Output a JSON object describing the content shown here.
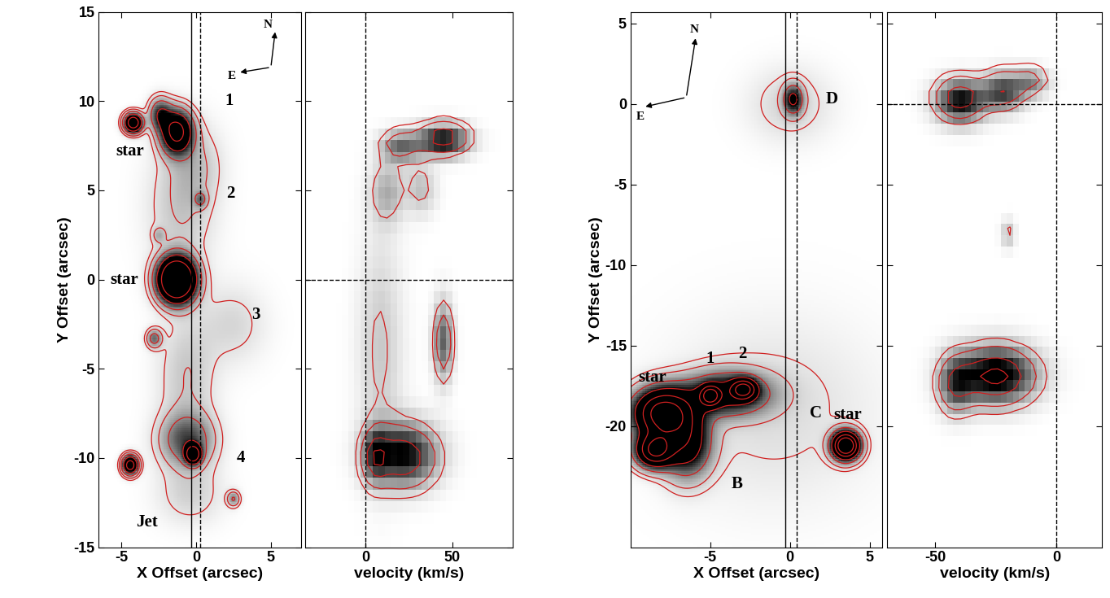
{
  "chart_data": [
    {
      "type": "image",
      "xlabel": "X Offset (arcsec)",
      "ylabel": "Y Offset (arcsec)",
      "xlim": [
        -6.5,
        7
      ],
      "ylim": [
        -15,
        15
      ],
      "xticks": [
        -5,
        0,
        5
      ],
      "yticks": [
        -15,
        -10,
        -5,
        0,
        5,
        10,
        15
      ],
      "color": "#d02020",
      "contour_levels": [
        0.05,
        0.1,
        0.2,
        0.4,
        0.7
      ],
      "color_range": [
        0,
        0.45
      ],
      "sources": [
        {
          "x": -4.2,
          "y": 8.8,
          "peak": 1.0,
          "sx": 0.4,
          "sy": 0.35
        },
        {
          "x": -1.3,
          "y": 8.3,
          "peak": 0.8,
          "sx": 0.7,
          "sy": 0.8
        },
        {
          "x": -2.4,
          "y": 9.3,
          "peak": 0.35,
          "sx": 0.5,
          "sy": 0.6
        },
        {
          "x": -1.3,
          "y": 0.0,
          "peak": 1.5,
          "sx": 0.8,
          "sy": 0.8
        },
        {
          "x": 0.3,
          "y": 4.5,
          "peak": 0.18,
          "sx": 0.3,
          "sy": 0.3
        },
        {
          "x": -2.5,
          "y": 2.5,
          "peak": 0.1,
          "sx": 0.3,
          "sy": 0.3
        },
        {
          "x": 2.5,
          "y": -2.5,
          "peak": 0.07,
          "sx": 1.5,
          "sy": 1.5
        },
        {
          "x": -2.8,
          "y": -3.3,
          "peak": 0.25,
          "sx": 0.35,
          "sy": 0.35
        },
        {
          "x": -0.2,
          "y": -9.8,
          "peak": 0.9,
          "sx": 0.35,
          "sy": 0.35
        },
        {
          "x": -0.6,
          "y": -9.0,
          "peak": 0.3,
          "sx": 1.2,
          "sy": 1.0
        },
        {
          "x": -4.4,
          "y": -10.4,
          "peak": 0.9,
          "sx": 0.35,
          "sy": 0.35
        },
        {
          "x": 2.5,
          "y": -12.3,
          "peak": 0.2,
          "sx": 0.3,
          "sy": 0.3
        },
        {
          "x": -0.6,
          "y": -5.5,
          "peak": 0.1,
          "sx": 1.3,
          "sy": 2.5
        },
        {
          "x": -1.0,
          "y": 4.0,
          "peak": 0.1,
          "sx": 1.5,
          "sy": 2.5
        },
        {
          "x": 0.0,
          "y": 6.5,
          "peak": 0.08,
          "sx": 1.2,
          "sy": 1.5
        },
        {
          "x": -0.4,
          "y": -12.0,
          "peak": 0.08,
          "sx": 1.5,
          "sy": 1.2
        }
      ],
      "lines": [
        {
          "direction": "vertical",
          "at": -0.3,
          "line_style": "solid"
        },
        {
          "direction": "vertical",
          "at": 0.3,
          "line_style": "dashed"
        }
      ],
      "annotations": [
        {
          "text": "1",
          "x": 2.2,
          "y": 10.0
        },
        {
          "text": "2",
          "x": 2.3,
          "y": 4.8
        },
        {
          "text": "3",
          "x": 4.0,
          "y": -2.0
        },
        {
          "text": "4",
          "x": 3.0,
          "y": -10.0
        },
        {
          "text": "star",
          "x": -4.4,
          "y": 7.2
        },
        {
          "text": "star",
          "x": -4.8,
          "y": 0.0
        },
        {
          "text": "Jet",
          "x": -3.3,
          "y": -13.6
        },
        {
          "text": "N",
          "x": 4.8,
          "y": 14.3
        },
        {
          "text": "E",
          "x": 2.4,
          "y": 11.4
        }
      ],
      "compass": {
        "origin": [
          5.0,
          11.9
        ],
        "tips": [
          [
            5.3,
            14.0
          ],
          [
            2.8,
            11.6
          ]
        ]
      }
    },
    {
      "type": "image",
      "xlabel": "velocity (km/s)",
      "xlim": [
        -35,
        85
      ],
      "ylim": [
        -15,
        15
      ],
      "xticks": [
        0,
        50
      ],
      "yticks": [
        -15,
        -10,
        -5,
        0,
        5,
        10,
        15
      ],
      "tick_labels": "x",
      "color": "#d02020",
      "contour_levels": [
        0.15,
        0.3,
        0.6,
        0.85
      ],
      "color_range": [
        0,
        0.8
      ],
      "sources": [
        {
          "x": 45,
          "y": 8.0,
          "peak": 0.8,
          "sx": 10,
          "sy": 0.6
        },
        {
          "x": 20,
          "y": 7.6,
          "peak": 0.45,
          "sx": 8,
          "sy": 0.6
        },
        {
          "x": 12,
          "y": 5.0,
          "peak": 0.25,
          "sx": 7,
          "sy": 1.2
        },
        {
          "x": 32,
          "y": 5.2,
          "peak": 0.2,
          "sx": 6,
          "sy": 1.0
        },
        {
          "x": 45,
          "y": -3.5,
          "peak": 0.5,
          "sx": 4,
          "sy": 1.5
        },
        {
          "x": 22,
          "y": -10.0,
          "peak": 0.8,
          "sx": 13,
          "sy": 1.2
        },
        {
          "x": 5,
          "y": -10.0,
          "peak": 0.5,
          "sx": 5,
          "sy": 1.0
        },
        {
          "x": 8,
          "y": -4.0,
          "peak": 0.17,
          "sx": 9,
          "sy": 4.5
        }
      ],
      "lines": [
        {
          "direction": "vertical",
          "at": 0,
          "line_style": "dashed"
        },
        {
          "direction": "horizontal",
          "at": 0,
          "line_style": "dashed"
        }
      ]
    },
    {
      "type": "image",
      "xlabel": "X Offset (arcsec)",
      "ylabel": "Y Offset (arcsec)",
      "xlim": [
        -10,
        5.8
      ],
      "ylim": [
        -27.5,
        5.7
      ],
      "xticks": [
        -5,
        0,
        5
      ],
      "yticks": [
        -20,
        -15,
        -10,
        -5,
        0,
        5
      ],
      "color": "#d02020",
      "contour_levels": [
        0.03,
        0.06,
        0.15,
        0.3,
        0.5,
        0.7
      ],
      "color_range": [
        0,
        0.3
      ],
      "sources": [
        {
          "x": 0.2,
          "y": 0.3,
          "peak": 0.3,
          "sx": 0.4,
          "sy": 0.6
        },
        {
          "x": 0.0,
          "y": 0.0,
          "peak": 0.05,
          "sx": 1.8,
          "sy": 1.6
        },
        {
          "x": -5.0,
          "y": -18.1,
          "peak": 0.6,
          "sx": 0.4,
          "sy": 0.4
        },
        {
          "x": -2.9,
          "y": -17.7,
          "peak": 0.6,
          "sx": 0.5,
          "sy": 0.4
        },
        {
          "x": -4.0,
          "y": -18.0,
          "peak": 0.35,
          "sx": 1.8,
          "sy": 0.9
        },
        {
          "x": -8.0,
          "y": -19.2,
          "peak": 0.8,
          "sx": 1.2,
          "sy": 1.0
        },
        {
          "x": -8.5,
          "y": -21.5,
          "peak": 0.7,
          "sx": 0.8,
          "sy": 0.7
        },
        {
          "x": -6.5,
          "y": -21.0,
          "peak": 0.4,
          "sx": 1.0,
          "sy": 1.4
        },
        {
          "x": 3.5,
          "y": -21.2,
          "peak": 1.0,
          "sx": 0.55,
          "sy": 0.55
        },
        {
          "x": -1.0,
          "y": -19.0,
          "peak": 0.04,
          "sx": 4.5,
          "sy": 4.0
        }
      ],
      "lines": [
        {
          "direction": "vertical",
          "at": -0.3,
          "line_style": "solid"
        },
        {
          "direction": "vertical",
          "at": 0.4,
          "line_style": "dashed"
        }
      ],
      "annotations": [
        {
          "text": "D",
          "x": 2.6,
          "y": 0.3
        },
        {
          "text": "1",
          "x": -5.0,
          "y": -15.8
        },
        {
          "text": "2",
          "x": -3.0,
          "y": -15.5
        },
        {
          "text": "star",
          "x": -8.6,
          "y": -17.0
        },
        {
          "text": "B",
          "x": -3.3,
          "y": -23.6
        },
        {
          "text": "C",
          "x": 1.6,
          "y": -19.2
        },
        {
          "text": "star",
          "x": 3.6,
          "y": -19.3
        },
        {
          "text": "N",
          "x": -6.0,
          "y": 4.6
        },
        {
          "text": "E",
          "x": -9.4,
          "y": -0.8
        }
      ],
      "compass": {
        "origin": [
          -6.5,
          0.4
        ],
        "tips": [
          [
            -5.9,
            4.2
          ],
          [
            -9.2,
            -0.2
          ]
        ]
      }
    },
    {
      "type": "image",
      "xlabel": "velocity (km/s)",
      "xlim": [
        -70,
        19
      ],
      "ylim": [
        -27.5,
        5.7
      ],
      "xticks": [
        -50,
        0
      ],
      "yticks": [
        -20,
        -15,
        -10,
        -5,
        0,
        5
      ],
      "tick_labels": "x",
      "color": "#d02020",
      "contour_levels": [
        0.15,
        0.3,
        0.6,
        0.85
      ],
      "color_range": [
        0,
        0.8
      ],
      "sources": [
        {
          "x": -40,
          "y": 0.4,
          "peak": 0.8,
          "sx": 7,
          "sy": 0.9
        },
        {
          "x": -22,
          "y": 1.0,
          "peak": 0.6,
          "sx": 6,
          "sy": 0.8
        },
        {
          "x": -10,
          "y": 1.6,
          "peak": 0.35,
          "sx": 5,
          "sy": 0.6
        },
        {
          "x": -25,
          "y": -16.9,
          "peak": 0.95,
          "sx": 11,
          "sy": 1.2
        },
        {
          "x": -42,
          "y": -17.5,
          "peak": 0.5,
          "sx": 5,
          "sy": 1.2
        },
        {
          "x": -20,
          "y": -8.0,
          "peak": 0.2,
          "sx": 2,
          "sy": 0.6
        }
      ],
      "lines": [
        {
          "direction": "vertical",
          "at": 0,
          "line_style": "dashed"
        },
        {
          "direction": "horizontal",
          "at": 0,
          "line_style": "dashed"
        }
      ]
    }
  ]
}
